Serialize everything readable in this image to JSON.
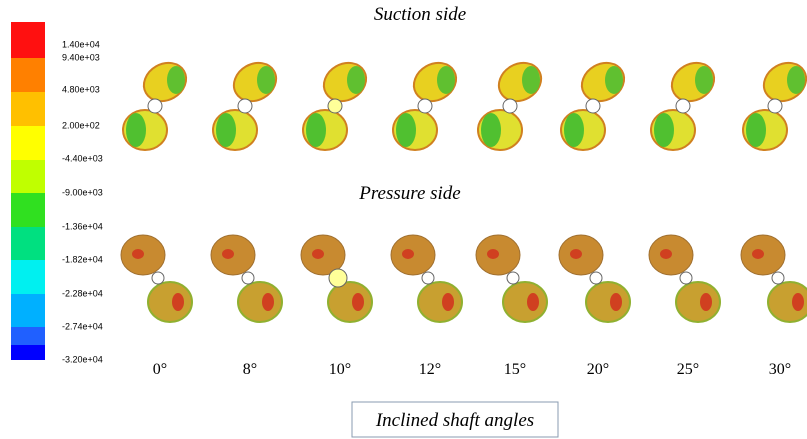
{
  "colorbar": {
    "labels": [
      "1.40e+04",
      "9.40e+03",
      "4.80e+03",
      "2.00e+02",
      "-4.40e+03",
      "-9.00e+03",
      "-1.36e+04",
      "-1.82e+04",
      "-2.28e+04",
      "-2.74e+04",
      "-3.20e+04"
    ]
  },
  "suction_title": "Suction side",
  "pressure_title": "Pressure side",
  "angles": [
    "0°",
    "8°",
    "10°",
    "12°",
    "15°",
    "20°",
    "25°",
    "30°"
  ],
  "caption": "Inclined shaft angles"
}
